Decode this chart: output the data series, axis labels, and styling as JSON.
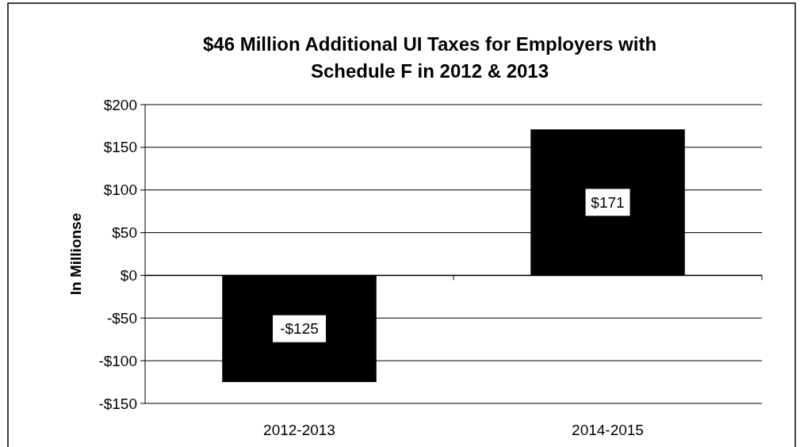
{
  "chart_data": {
    "type": "bar",
    "title": "$46 Million Additional UI Taxes for Employers with Schedule F in 2012 & 2013",
    "ylabel": "In Millionse",
    "categories": [
      "2012-2013",
      "2014-2015"
    ],
    "values": [
      -125,
      171
    ],
    "color": "#000000",
    "value_labels": [
      "-$125",
      "$171"
    ],
    "ylim": [
      -150,
      200
    ],
    "yticks": [
      {
        "value": -150,
        "label": "-$150"
      },
      {
        "value": -100,
        "label": "-$100"
      },
      {
        "value": -50,
        "label": "-$50"
      },
      {
        "value": 0,
        "label": "$0"
      },
      {
        "value": 50,
        "label": "$50"
      },
      {
        "value": 100,
        "label": "$100"
      },
      {
        "value": 150,
        "label": "$150"
      },
      {
        "value": 200,
        "label": "$200"
      }
    ],
    "grid": "y"
  }
}
